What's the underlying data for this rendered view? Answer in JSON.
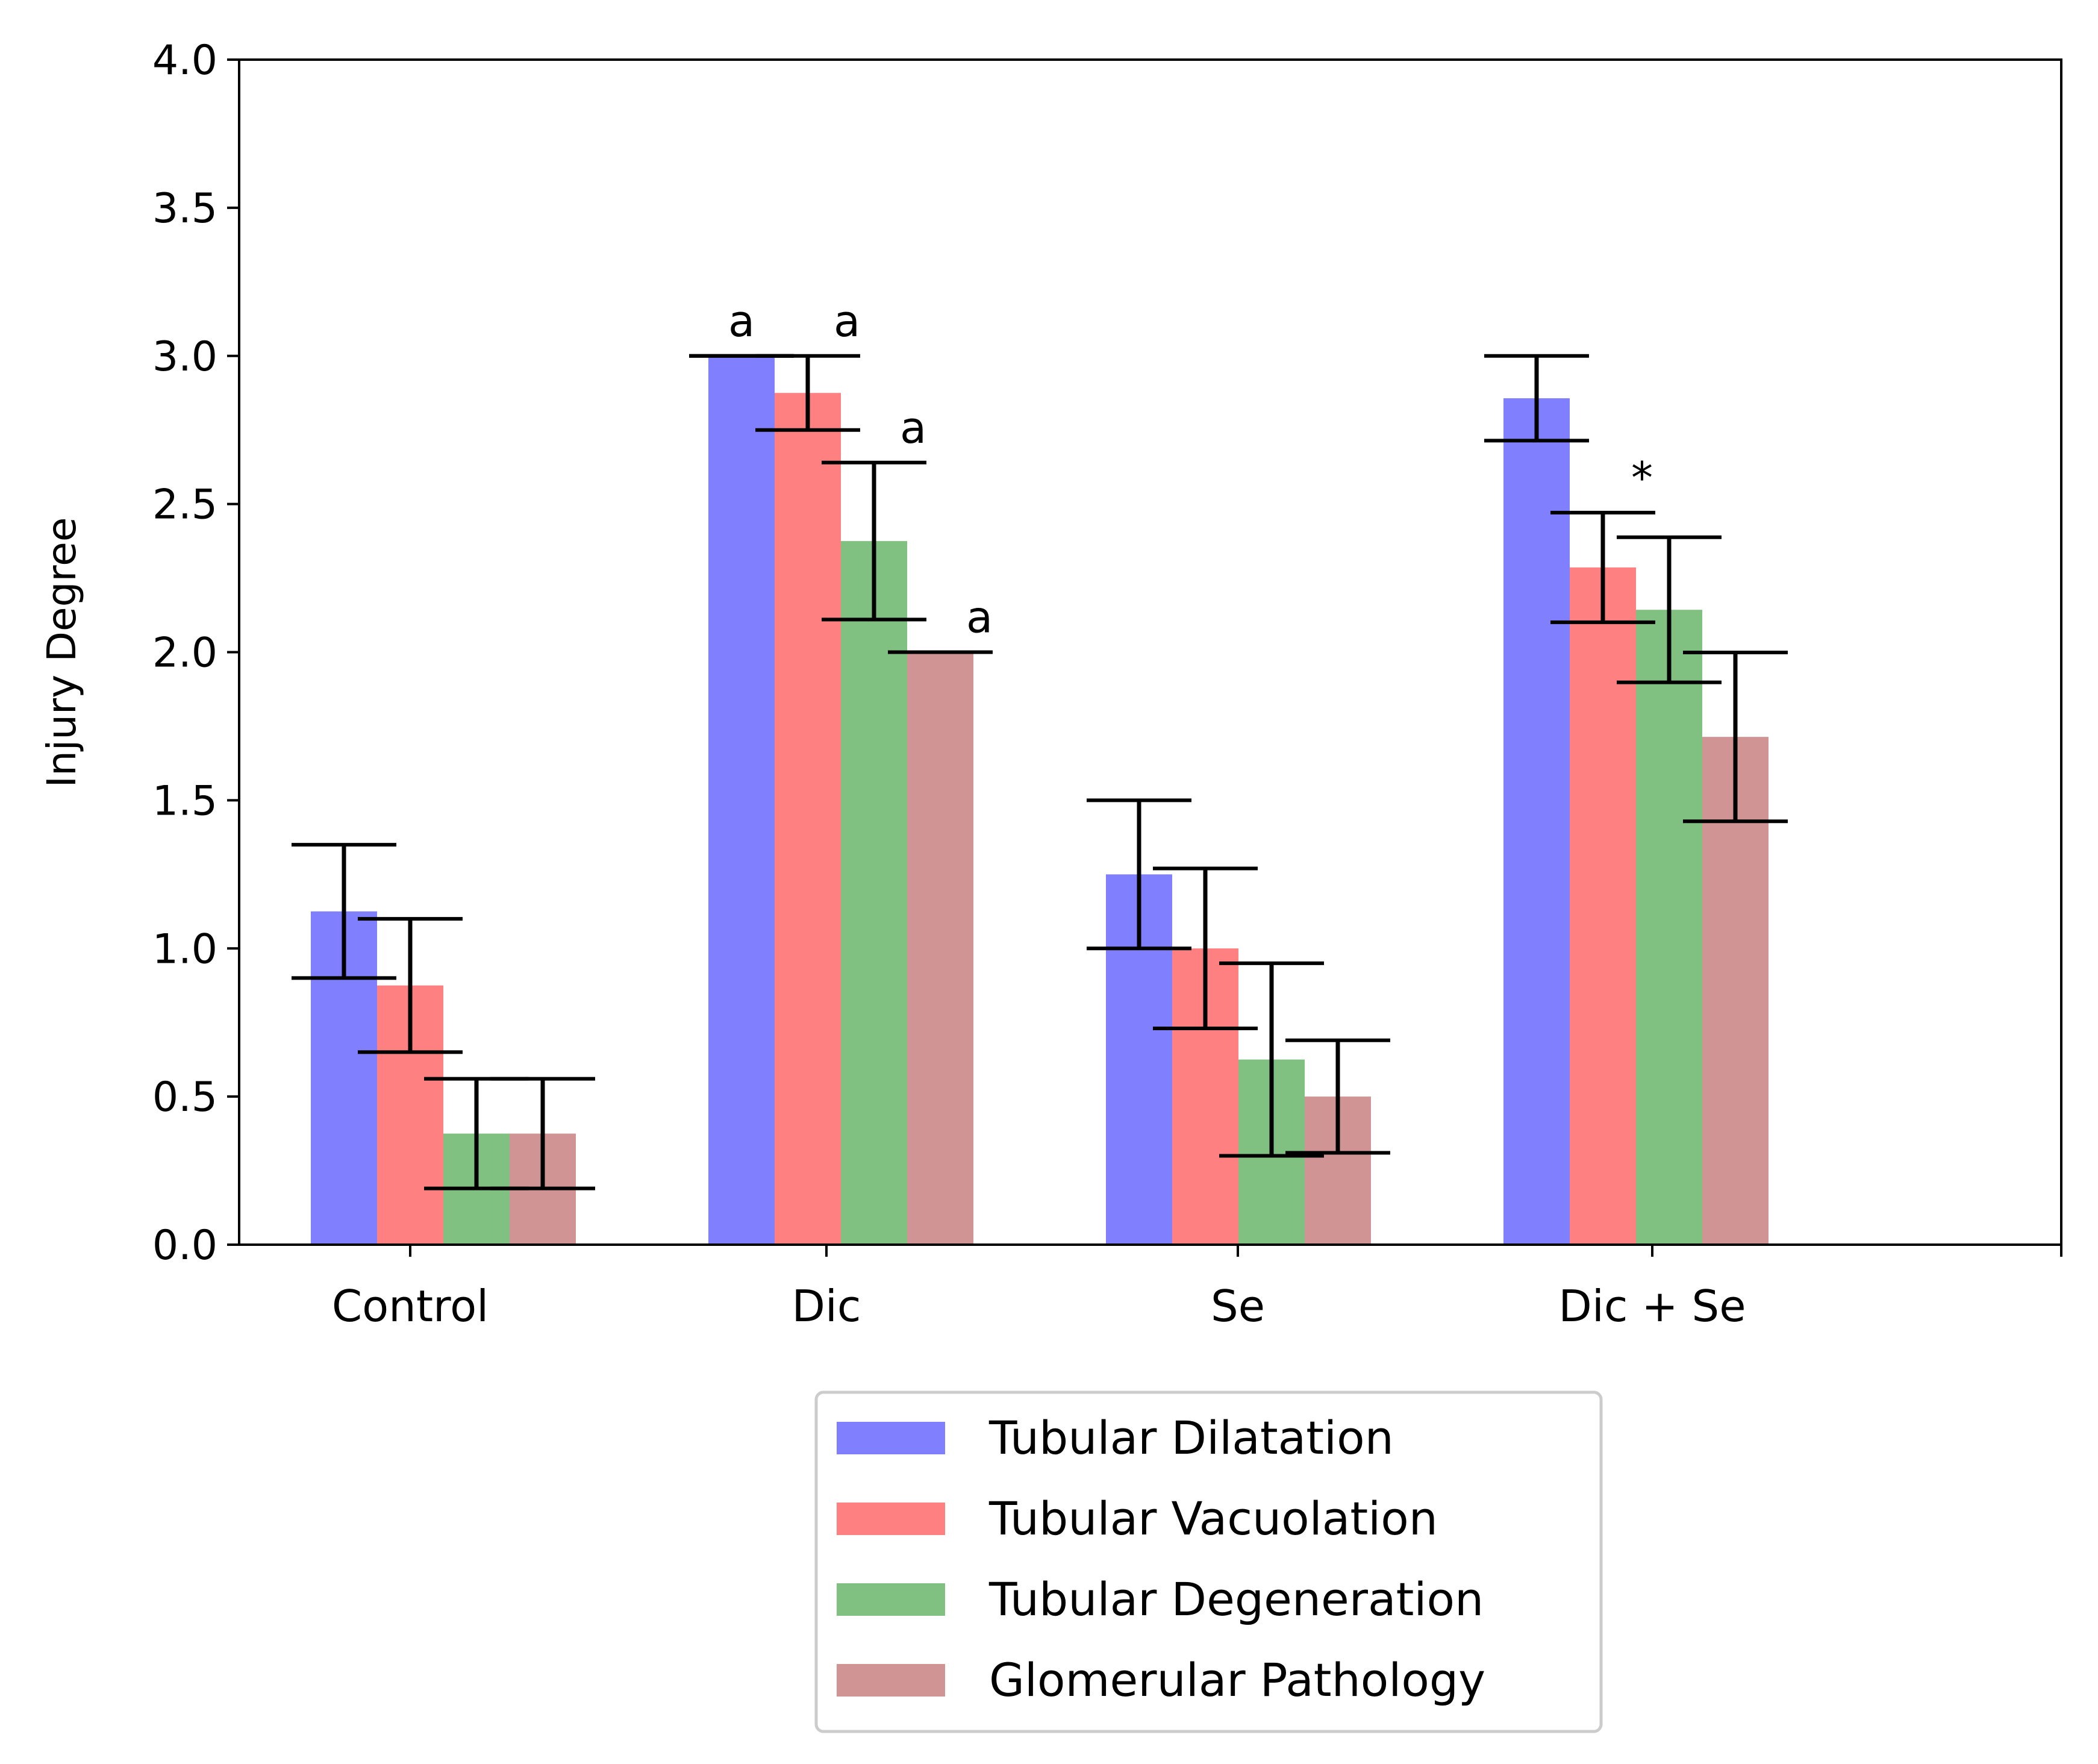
{
  "chart_data": {
    "type": "bar",
    "ylabel": "Injury Degree",
    "xlabel": "",
    "ylim": [
      0,
      4
    ],
    "yticks": [
      "0.0",
      "0.5",
      "1.0",
      "1.5",
      "2.0",
      "2.5",
      "3.0",
      "3.5",
      "4.0"
    ],
    "categories": [
      "Control",
      "Dic",
      "Se",
      "Dic + Se"
    ],
    "grid": false,
    "legend_position": "bottom-center",
    "series": [
      {
        "name": "Tubular Dilatation",
        "color": "#8080ff",
        "values": [
          1.125,
          3.0,
          1.25,
          2.857
        ],
        "errors": [
          0.225,
          0.0,
          0.25,
          0.143
        ],
        "annotations": [
          "",
          "a",
          "",
          ""
        ]
      },
      {
        "name": "Tubular Vacuolation",
        "color": "#ff8080",
        "values": [
          0.875,
          2.875,
          1.0,
          2.286
        ],
        "errors": [
          0.225,
          0.125,
          0.27,
          0.185
        ],
        "annotations": [
          "",
          "a",
          "",
          "*"
        ]
      },
      {
        "name": "Tubular Degeneration",
        "color": "#80c080",
        "values": [
          0.375,
          2.375,
          0.625,
          2.143
        ],
        "errors": [
          0.185,
          0.265,
          0.325,
          0.245
        ],
        "annotations": [
          "",
          "a",
          "",
          ""
        ]
      },
      {
        "name": "Glomerular Pathology",
        "color": "#d09494",
        "values": [
          0.375,
          2.0,
          0.5,
          1.714
        ],
        "errors": [
          0.185,
          0.0,
          0.19,
          0.285
        ],
        "annotations": [
          "",
          "a",
          "",
          ""
        ]
      }
    ]
  }
}
